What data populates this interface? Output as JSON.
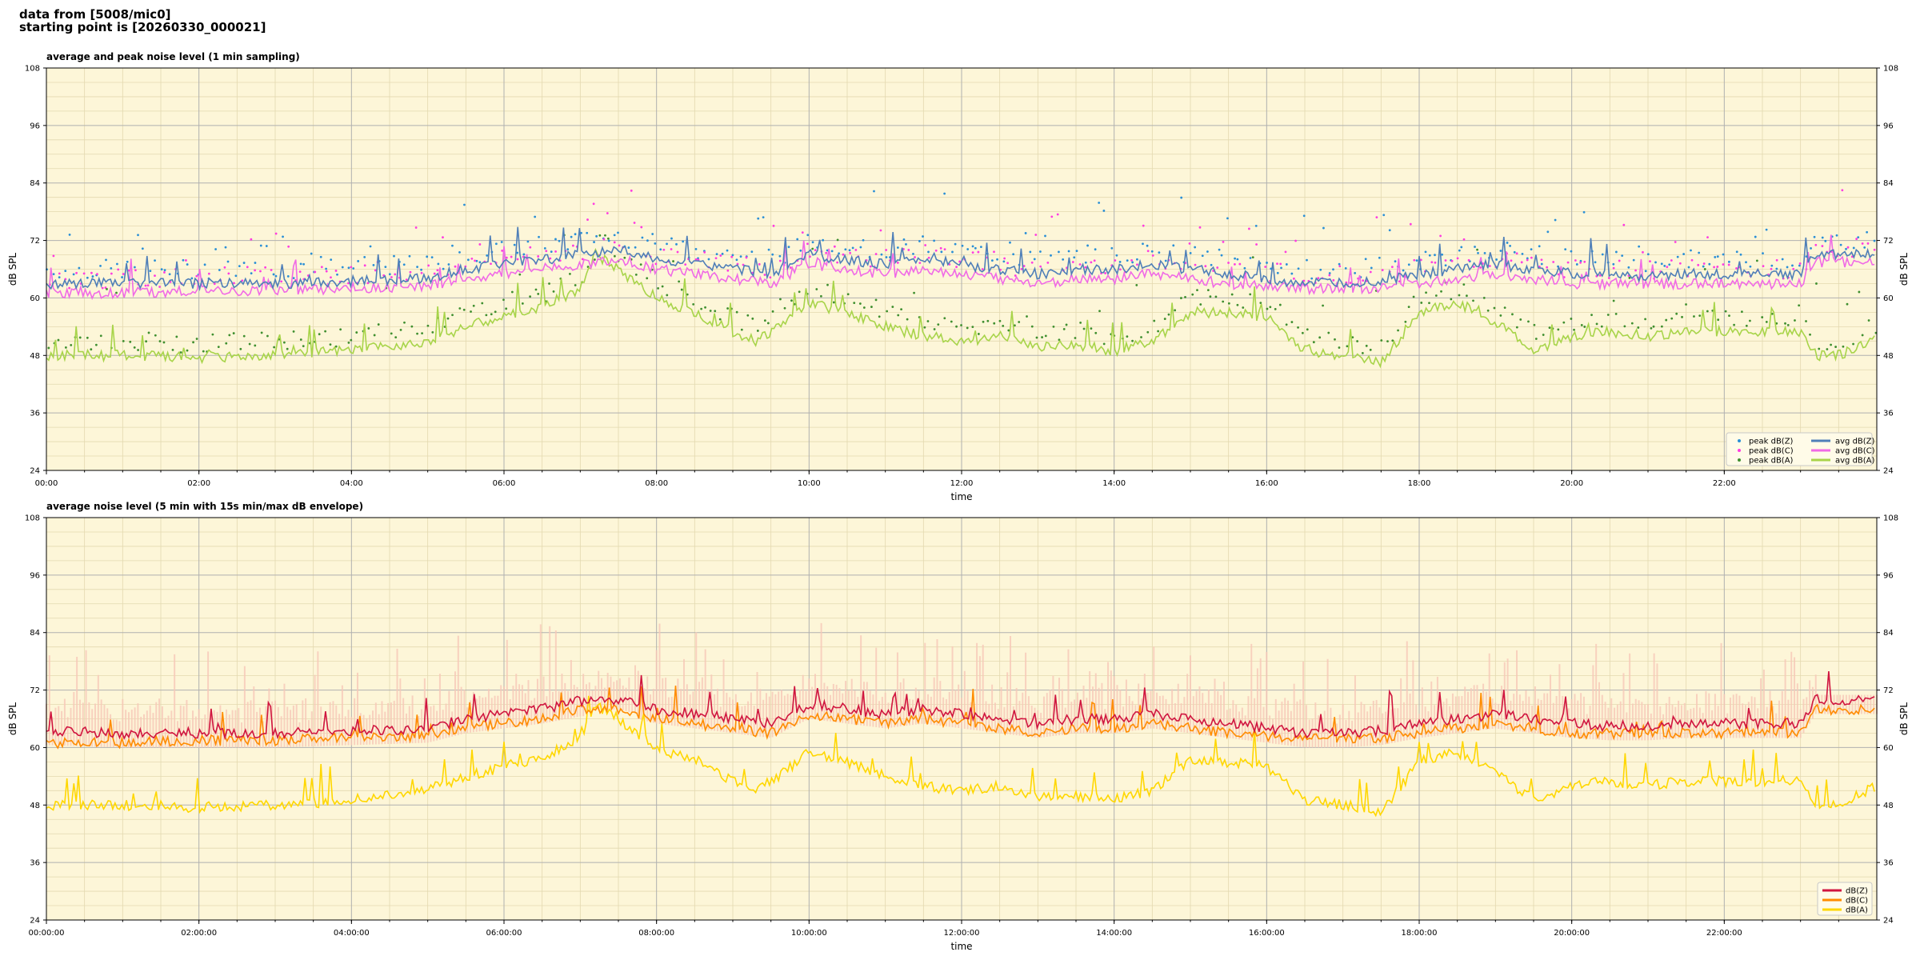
{
  "header": {
    "line1": "data from [5008/mic0]",
    "line2": "starting point is [20260330_000021]"
  },
  "colors": {
    "background": "#fdf6d8",
    "peak_z": "#2a8fd6",
    "peak_c": "#ff3de0",
    "peak_a": "#3f8f2f",
    "avg_z": "#4f7fb8",
    "avg_c": "#f06ae6",
    "avg_a": "#a8d44a",
    "z": "#d0153f",
    "c": "#ff8c00",
    "a": "#ffd700",
    "envelope": "#f8c8b8"
  },
  "chart_data": [
    {
      "type": "line",
      "title": "average and peak noise level (1 min sampling)",
      "xlabel": "time",
      "ylabel": "dB SPL",
      "ylim": [
        24,
        108
      ],
      "yticks": [
        "24",
        "36",
        "48",
        "60",
        "72",
        "84",
        "96",
        "108"
      ],
      "xlim_hours": [
        0,
        24
      ],
      "xtick_labels": [
        "00:00",
        "02:00",
        "04:00",
        "06:00",
        "08:00",
        "10:00",
        "12:00",
        "14:00",
        "16:00",
        "18:00",
        "20:00",
        "22:00"
      ],
      "grid": true,
      "legend_position": "lower-right",
      "legend": [
        "peak dB(Z)",
        "peak dB(C)",
        "peak dB(A)",
        "avg dB(Z)",
        "avg dB(C)",
        "avg dB(A)"
      ],
      "series": [
        {
          "name": "avg dB(Z)",
          "kind": "line",
          "color": "#4f7fb8",
          "x": [
            0,
            1,
            2,
            3,
            4,
            5,
            5.5,
            6,
            6.5,
            7,
            7.5,
            8,
            8.5,
            9,
            9.5,
            10,
            10.5,
            11,
            11.5,
            12,
            12.5,
            13,
            13.5,
            14,
            14.5,
            15,
            15.5,
            16,
            16.5,
            17,
            17.5,
            18,
            18.5,
            19,
            19.5,
            20,
            20.5,
            21,
            21.5,
            22,
            22.5,
            23,
            23.2,
            23.5,
            24
          ],
          "y": [
            63,
            63,
            63,
            63,
            63.5,
            64,
            66,
            67,
            68,
            69,
            70,
            68,
            67,
            66,
            65,
            69,
            68,
            67,
            68,
            67,
            66,
            65,
            66,
            66,
            67,
            66,
            65,
            64,
            63,
            63,
            63.5,
            65,
            66,
            67,
            66,
            65,
            65,
            64.5,
            65,
            65,
            65,
            65,
            69,
            69,
            69
          ]
        },
        {
          "name": "avg dB(C)",
          "kind": "line",
          "color": "#f06ae6",
          "x": [
            0,
            1,
            2,
            3,
            4,
            5,
            5.5,
            6,
            6.5,
            7,
            7.5,
            8,
            8.5,
            9,
            9.5,
            10,
            10.5,
            11,
            11.5,
            12,
            12.5,
            13,
            13.5,
            14,
            14.5,
            15,
            15.5,
            16,
            16.5,
            17,
            17.5,
            18,
            18.5,
            19,
            19.5,
            20,
            20.5,
            21,
            21.5,
            22,
            22.5,
            23,
            23.2,
            23.5,
            24
          ],
          "y": [
            61,
            61,
            61.5,
            61.5,
            62,
            62.5,
            64,
            65,
            66,
            67,
            68,
            66,
            65,
            64,
            63,
            67,
            66,
            65,
            66,
            65,
            64,
            63,
            64,
            64,
            65,
            64,
            63,
            62.5,
            62,
            62,
            62,
            63,
            64,
            65,
            64,
            63,
            63,
            63,
            63,
            63,
            63,
            63,
            67.5,
            67.5,
            67.5
          ]
        },
        {
          "name": "avg dB(A)",
          "kind": "line",
          "color": "#a8d44a",
          "x": [
            0,
            0.5,
            1,
            2,
            3,
            4,
            5,
            5.5,
            6,
            6.5,
            7,
            7.2,
            7.5,
            8,
            8.5,
            9,
            9.3,
            9.6,
            10,
            10.5,
            11,
            11.5,
            12,
            12.5,
            13,
            13.5,
            14,
            14.5,
            15,
            15.5,
            16,
            16.5,
            17,
            17.5,
            18,
            18.5,
            19,
            19.5,
            20,
            20.5,
            21,
            21.5,
            22,
            22.5,
            23,
            23.2,
            23.5,
            24
          ],
          "y": [
            48,
            48,
            48,
            47.5,
            48,
            49,
            51,
            54,
            56,
            58,
            62,
            69,
            66,
            60,
            57,
            53,
            51,
            54,
            59,
            57,
            54,
            52,
            51,
            52,
            50,
            50,
            49,
            51,
            57,
            57,
            56,
            49,
            48,
            46.5,
            57,
            59,
            55,
            49,
            52,
            53,
            52,
            53,
            53,
            53,
            53,
            48,
            48,
            52
          ]
        },
        {
          "name": "peak dB(Z)",
          "kind": "scatter",
          "color": "#2a8fd6"
        },
        {
          "name": "peak dB(C)",
          "kind": "scatter",
          "color": "#ff3de0"
        },
        {
          "name": "peak dB(A)",
          "kind": "scatter",
          "color": "#3f8f2f"
        }
      ]
    },
    {
      "type": "line",
      "title": "average noise level (5 min with 15s min/max dB envelope)",
      "xlabel": "time",
      "ylabel": "dB SPL",
      "ylim": [
        24,
        108
      ],
      "yticks": [
        "24",
        "36",
        "48",
        "60",
        "72",
        "84",
        "96",
        "108"
      ],
      "xlim_hours": [
        0,
        24
      ],
      "xtick_labels": [
        "00:00:00",
        "02:00:00",
        "04:00:00",
        "06:00:00",
        "08:00:00",
        "10:00:00",
        "12:00:00",
        "14:00:00",
        "16:00:00",
        "18:00:00",
        "20:00:00",
        "22:00:00"
      ],
      "grid": true,
      "legend_position": "lower-right",
      "legend": [
        "dB(Z)",
        "dB(C)",
        "dB(A)"
      ],
      "series": [
        {
          "name": "dB(Z)",
          "kind": "line",
          "color": "#d0153f",
          "x": [
            0,
            1,
            2,
            3,
            4,
            5,
            5.5,
            6,
            6.5,
            7,
            7.5,
            8,
            8.5,
            9,
            9.5,
            10,
            10.5,
            11,
            11.5,
            12,
            12.5,
            13,
            13.5,
            14,
            14.5,
            15,
            15.5,
            16,
            16.5,
            17,
            17.5,
            18,
            18.5,
            19,
            19.5,
            20,
            20.5,
            21,
            21.5,
            22,
            22.5,
            23,
            23.2,
            23.5,
            24
          ],
          "y": [
            63.5,
            63,
            63,
            63,
            63.5,
            64,
            66,
            67,
            68,
            69.5,
            70,
            68,
            67,
            66,
            65,
            69,
            68,
            67,
            68,
            67,
            66,
            65,
            66,
            66,
            67,
            66,
            65,
            64,
            63,
            63,
            63.5,
            65,
            66,
            67,
            66,
            65,
            64.5,
            64.5,
            65,
            65,
            65,
            65,
            70,
            70,
            70
          ]
        },
        {
          "name": "dB(C)",
          "kind": "line",
          "color": "#ff8c00",
          "x": [
            0,
            1,
            2,
            3,
            4,
            5,
            5.5,
            6,
            6.5,
            7,
            7.5,
            8,
            8.5,
            9,
            9.5,
            10,
            10.5,
            11,
            11.5,
            12,
            12.5,
            13,
            13.5,
            14,
            14.5,
            15,
            15.5,
            16,
            16.5,
            17,
            17.5,
            18,
            18.5,
            19,
            19.5,
            20,
            20.5,
            21,
            21.5,
            22,
            22.5,
            23,
            23.2,
            23.5,
            24
          ],
          "y": [
            61,
            61,
            61.5,
            61.5,
            62,
            62.5,
            64,
            65,
            66,
            68,
            68,
            66,
            65,
            64,
            63,
            67,
            66,
            65,
            66,
            65,
            64,
            63,
            64,
            64,
            65,
            64,
            63,
            62.5,
            62,
            62,
            62,
            63,
            64,
            65,
            64,
            63,
            63,
            63,
            63,
            63,
            63,
            63,
            68,
            68,
            68
          ]
        },
        {
          "name": "dB(A)",
          "kind": "line",
          "color": "#ffd700",
          "x": [
            0,
            0.5,
            1,
            2,
            3,
            4,
            5,
            5.5,
            6,
            6.5,
            7,
            7.2,
            7.5,
            8,
            8.5,
            9,
            9.3,
            9.6,
            10,
            10.5,
            11,
            11.5,
            12,
            12.5,
            13,
            13.5,
            14,
            14.5,
            15,
            15.5,
            16,
            16.5,
            17,
            17.5,
            18,
            18.5,
            19,
            19.5,
            20,
            20.5,
            21,
            21.5,
            22,
            22.5,
            23,
            23.2,
            23.5,
            24
          ],
          "y": [
            48,
            48,
            48,
            47.5,
            48,
            49,
            51,
            54,
            56,
            58,
            62,
            69,
            66,
            60,
            57,
            53,
            51,
            54,
            59,
            57,
            54,
            52,
            51,
            52,
            50,
            50,
            49,
            51,
            57,
            57,
            56,
            49,
            48,
            46.5,
            57,
            59,
            55,
            49,
            52,
            53,
            52,
            53,
            53,
            53,
            53,
            48,
            48,
            52
          ]
        }
      ]
    }
  ]
}
